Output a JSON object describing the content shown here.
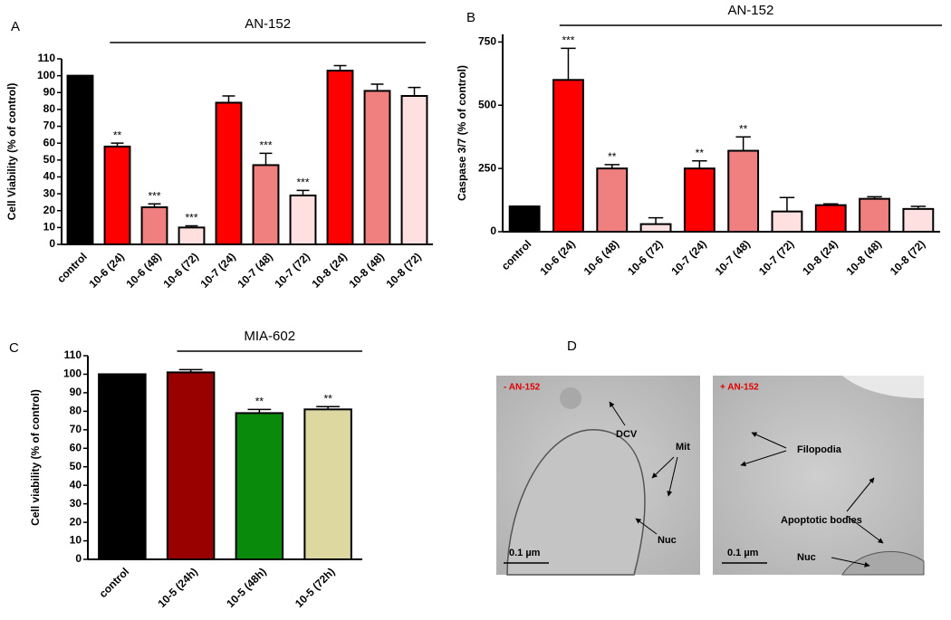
{
  "chart_data": [
    {
      "type": "bar",
      "panel_label": "A",
      "title": "AN-152",
      "y_label": "Cell Viability (% of control)",
      "categories": [
        "control",
        "10-6 (24)",
        "10-6 (48)",
        "10-6 (72)",
        "10-7 (24)",
        "10-7 (48)",
        "10-7 (72)",
        "10-8 (24)",
        "10-8 (48)",
        "10-8 (72)"
      ],
      "values": [
        100,
        58,
        22,
        10,
        84,
        47,
        29,
        103,
        91,
        88
      ],
      "errors": [
        0,
        2,
        2,
        1,
        4,
        7,
        3,
        3,
        4,
        5
      ],
      "annotations": [
        null,
        "**",
        "***",
        "***",
        null,
        "***",
        "***",
        null,
        null,
        null
      ],
      "colors": [
        "#000000",
        "#ff0000",
        "#f08080",
        "#ffe0e0",
        "#ff0000",
        "#f08080",
        "#ffe0e0",
        "#ff0000",
        "#f08080",
        "#ffe0e0"
      ],
      "ylim": [
        0,
        110
      ],
      "yticks": [
        0,
        10,
        20,
        30,
        40,
        50,
        60,
        70,
        80,
        90,
        100,
        110
      ]
    },
    {
      "type": "bar",
      "panel_label": "B",
      "title": "AN-152",
      "y_label": "Caspase 3/7 (% of control)",
      "categories": [
        "control",
        "10-6 (24)",
        "10-6 (48)",
        "10-6 (72)",
        "10-7 (24)",
        "10-7 (48)",
        "10-7 (72)",
        "10-8 (24)",
        "10-8 (48)",
        "10-8 (72)"
      ],
      "values": [
        100,
        600,
        250,
        30,
        250,
        320,
        80,
        105,
        130,
        90
      ],
      "errors": [
        0,
        125,
        15,
        25,
        30,
        55,
        55,
        5,
        8,
        10
      ],
      "annotations": [
        null,
        "***",
        "**",
        null,
        "**",
        "**",
        null,
        null,
        null,
        null
      ],
      "colors": [
        "#000000",
        "#ff0000",
        "#f08080",
        "#ffe0e0",
        "#ff0000",
        "#f08080",
        "#ffe0e0",
        "#ff0000",
        "#f08080",
        "#ffe0e0"
      ],
      "ylim": [
        0,
        780
      ],
      "yticks": [
        0,
        250,
        500,
        750
      ]
    },
    {
      "type": "bar",
      "panel_label": "C",
      "title": "MIA-602",
      "y_label": "Cell viability (% of control)",
      "categories": [
        "control",
        "10-5 (24h)",
        "10-5 (48h)",
        "10-5 (72h)"
      ],
      "values": [
        100,
        101,
        79,
        81
      ],
      "errors": [
        0,
        1.5,
        2,
        1.5
      ],
      "annotations": [
        null,
        null,
        "**",
        "**"
      ],
      "colors": [
        "#000000",
        "#990000",
        "#0a8a0a",
        "#dcd8a0"
      ],
      "ylim": [
        0,
        110
      ],
      "yticks": [
        0,
        10,
        20,
        30,
        40,
        50,
        60,
        70,
        80,
        90,
        100,
        110
      ]
    }
  ],
  "panel_d": {
    "label": "D",
    "left": {
      "condition": "- AN-152",
      "labels": [
        "DCV",
        "Mit",
        "Nuc"
      ],
      "scale": "0.1 µm"
    },
    "right": {
      "condition": "+ AN-152",
      "labels": [
        "Filopodia",
        "Apoptotic bodies",
        "Nuc"
      ],
      "scale": "0.1 µm"
    }
  }
}
